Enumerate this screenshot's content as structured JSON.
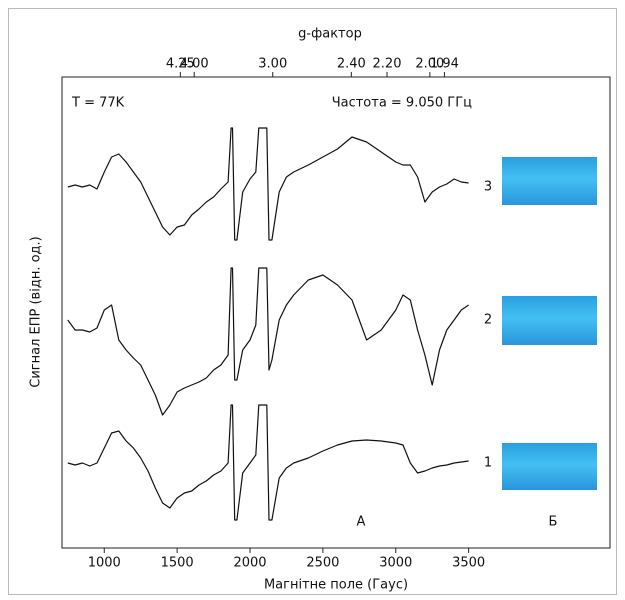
{
  "chart_data": {
    "type": "line",
    "x2label": "g-фактор",
    "xlabel": "Магнітне поле (Гаус)",
    "ylabel": "Сигнал ЕПР (відн. од.)",
    "annotations": [
      "T = 77K",
      "Частота = 9.050 ГГц"
    ],
    "panel_labels": [
      "А",
      "Б"
    ],
    "xlim": [
      710,
      4470
    ],
    "xticks": [
      1000,
      1500,
      2000,
      2500,
      3000,
      3500
    ],
    "x2lim": [
      9.11,
      1.447
    ],
    "x2scale": "reciprocal",
    "x2ticks": [
      4.25,
      {
        "value": 4,
        "label": "4.00"
      },
      {
        "value": 3,
        "label": "3.00"
      },
      {
        "value": 2.4,
        "label": "2.40"
      },
      {
        "value": 2.2,
        "label": "2.20"
      },
      {
        "value": 2,
        "label": "2.00"
      },
      1.94
    ],
    "x": [
      750,
      800,
      850,
      900,
      950,
      1000,
      1050,
      1100,
      1150,
      1200,
      1250,
      1300,
      1350,
      1400,
      1450,
      1500,
      1550,
      1600,
      1650,
      1700,
      1750,
      1800,
      1850,
      1870,
      1880,
      1895,
      1910,
      1950,
      2000,
      2040,
      2060,
      2080,
      2100,
      2115,
      2130,
      2150,
      2200,
      2250,
      2300,
      2400,
      2500,
      2600,
      2700,
      2800,
      2900,
      3000,
      3050,
      3100,
      3150,
      3200,
      3250,
      3300,
      3350,
      3400,
      3450,
      3500
    ],
    "series": [
      {
        "name": "3",
        "color": "#111111",
        "values": [
          0,
          2,
          0,
          2,
          -2,
          15,
          30,
          33,
          25,
          15,
          5,
          -10,
          -25,
          -40,
          -48,
          -40,
          -38,
          -28,
          -22,
          -15,
          -10,
          -2,
          5,
          59,
          59,
          -53,
          -53,
          -5,
          8,
          15,
          59,
          59,
          59,
          59,
          -53,
          -53,
          -5,
          10,
          15,
          22,
          30,
          38,
          50,
          45,
          35,
          25,
          22,
          22,
          10,
          -15,
          -5,
          0,
          3,
          8,
          5,
          4
        ]
      },
      {
        "name": "2",
        "color": "#111111",
        "values": [
          0,
          -10,
          -10,
          -12,
          -8,
          10,
          15,
          -20,
          -30,
          -38,
          -45,
          -60,
          -75,
          -95,
          -85,
          -72,
          -68,
          -65,
          -62,
          -58,
          -50,
          -45,
          -35,
          52,
          52,
          -60,
          -60,
          -30,
          -20,
          -5,
          52,
          52,
          52,
          52,
          -50,
          -40,
          0,
          15,
          25,
          40,
          45,
          35,
          20,
          -20,
          -10,
          10,
          25,
          20,
          -10,
          -35,
          -65,
          -30,
          -10,
          0,
          10,
          15
        ]
      },
      {
        "name": "1",
        "color": "#111111",
        "values": [
          0,
          -2,
          0,
          -3,
          0,
          15,
          30,
          32,
          22,
          15,
          5,
          -8,
          -25,
          -40,
          -45,
          -35,
          -30,
          -28,
          -22,
          -18,
          -12,
          -8,
          0,
          58,
          58,
          -57,
          -57,
          -10,
          0,
          8,
          58,
          58,
          58,
          58,
          -57,
          -57,
          -15,
          -5,
          0,
          5,
          12,
          18,
          22,
          23,
          22,
          20,
          18,
          0,
          -10,
          -8,
          -5,
          -3,
          -2,
          0,
          1,
          2
        ]
      }
    ]
  }
}
